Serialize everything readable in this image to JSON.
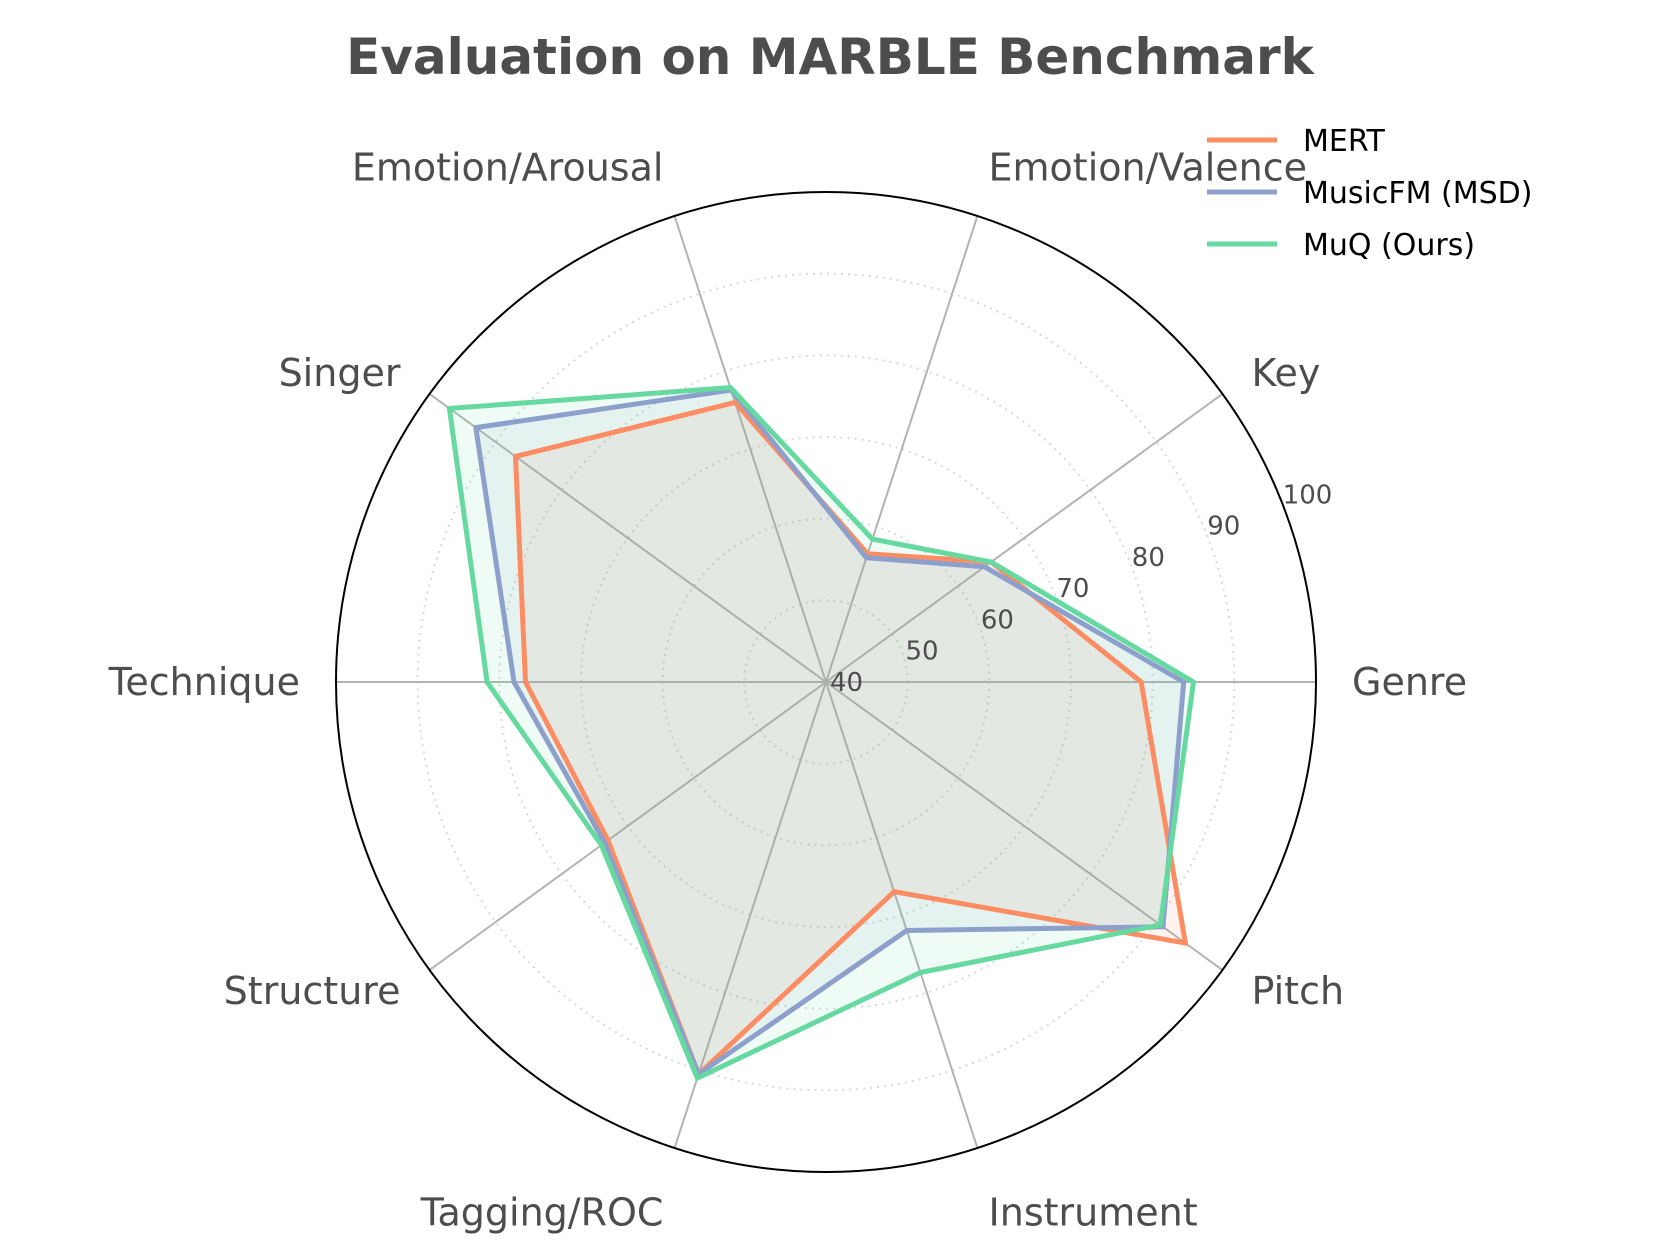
{
  "chart_data": {
    "type": "radar",
    "title": "Evaluation on MARBLE Benchmark",
    "axes": [
      "Genre",
      "Key",
      "Emotion/Valence",
      "Emotion/Arousal",
      "Singer",
      "Technique",
      "Structure",
      "Tagging/ROC",
      "Instrument",
      "Pitch"
    ],
    "ticks": [
      "40",
      "50",
      "60",
      "70",
      "80",
      "90",
      "100"
    ],
    "rlim": [
      40,
      100
    ],
    "grid": true,
    "legend_position": "top-right",
    "series": [
      {
        "name": "MERT",
        "color": "#fc8d62",
        "values": [
          78.6,
          65.0,
          56.5,
          76.0,
          87.0,
          76.8,
          73.0,
          90.5,
          67.0,
          94.4
        ]
      },
      {
        "name": "MusicFM (MSD)",
        "color": "#8da0cb",
        "values": [
          83.8,
          64.0,
          56.0,
          77.6,
          93.0,
          78.2,
          73.5,
          90.5,
          72.0,
          91.0
        ]
      },
      {
        "name": "MuQ (Ours)",
        "color": "#66d9a0",
        "values": [
          85.0,
          65.0,
          58.4,
          77.9,
          97.0,
          81.5,
          74.0,
          91.0,
          77.4,
          90.6
        ]
      }
    ]
  }
}
